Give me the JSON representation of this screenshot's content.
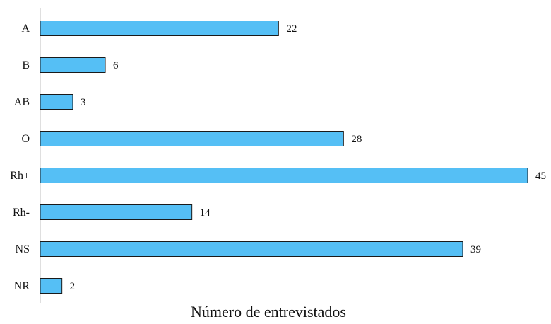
{
  "chart_data": {
    "type": "bar",
    "orientation": "horizontal",
    "categories": [
      "A",
      "B",
      "AB",
      "O",
      "Rh+",
      "Rh-",
      "NS",
      "NR"
    ],
    "values": [
      22,
      6,
      3,
      28,
      45,
      14,
      39,
      2
    ],
    "xlabel": "Número de entrevistados",
    "xlim": [
      0,
      45
    ],
    "grid": false,
    "bar_color": "#55bff5",
    "bar_border_color": "#1a1a1a"
  }
}
